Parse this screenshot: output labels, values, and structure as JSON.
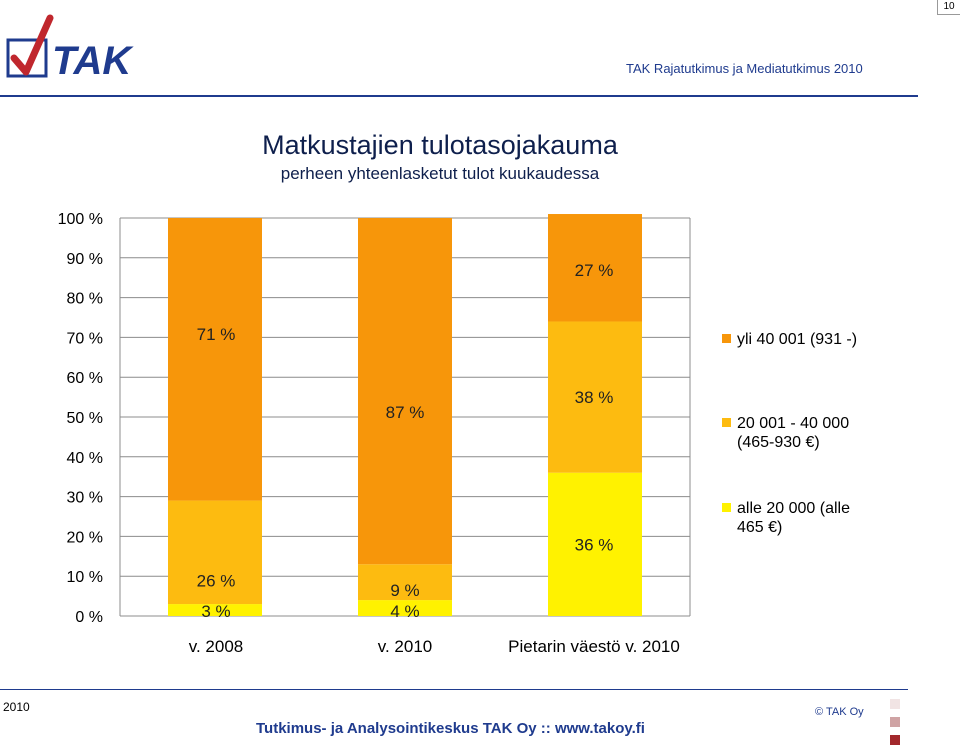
{
  "page_number": "10",
  "header": {
    "logo_text": "TAK",
    "right_text": "TAK Rajatutkimus ja Mediatutkimus 2010"
  },
  "colors": {
    "brand": "#1f3b8e",
    "logo_red": "#c0272d",
    "series_high": "#f7960a",
    "series_mid": "#fdbb10",
    "series_low": "#fff200"
  },
  "chart_data": {
    "type": "bar",
    "stacked": true,
    "title": "Matkustajien tulotasojakauma",
    "subtitle": "perheen yhteenlasketut tulot kuukaudessa",
    "categories": [
      "v. 2008",
      "v. 2010",
      "Pietarin väestö v. 2010"
    ],
    "series": [
      {
        "name": "alle 20 000 (alle 465 €)",
        "values": [
          3,
          4,
          36
        ],
        "labels": [
          "3 %",
          "4 %",
          "36 %"
        ],
        "color": "#fff200"
      },
      {
        "name": "20 001 - 40 000 (465-930 €)",
        "values": [
          26,
          9,
          38
        ],
        "labels": [
          "26 %",
          "9 %",
          "38 %"
        ],
        "color": "#fdbb10"
      },
      {
        "name": "yli 40 001  (931 -)",
        "values": [
          71,
          87,
          27
        ],
        "labels": [
          "71 %",
          "87 %",
          "27 %"
        ],
        "color": "#f7960a"
      }
    ],
    "yticks": [
      "0 %",
      "10 %",
      "20 %",
      "30 %",
      "40 %",
      "50 %",
      "60 %",
      "70 %",
      "80 %",
      "90 %",
      "100 %"
    ],
    "ylim": [
      0,
      100
    ],
    "grid": true,
    "legend_position": "right"
  },
  "legend": {
    "items": [
      {
        "label_line1": "yli 40 001  (931 -)",
        "label_line2": "",
        "color": "#f7960a"
      },
      {
        "label_line1": "20 001 - 40 000",
        "label_line2": "(465-930 €)",
        "color": "#fdbb10"
      },
      {
        "label_line1": "alle 20 000 (alle",
        "label_line2": "465 €)",
        "color": "#fff200"
      }
    ]
  },
  "footer": {
    "year": "2010",
    "company": "Tutkimus- ja Analysointikeskus TAK Oy   ::   www.takoy.fi",
    "copyright": "© TAK Oy"
  }
}
